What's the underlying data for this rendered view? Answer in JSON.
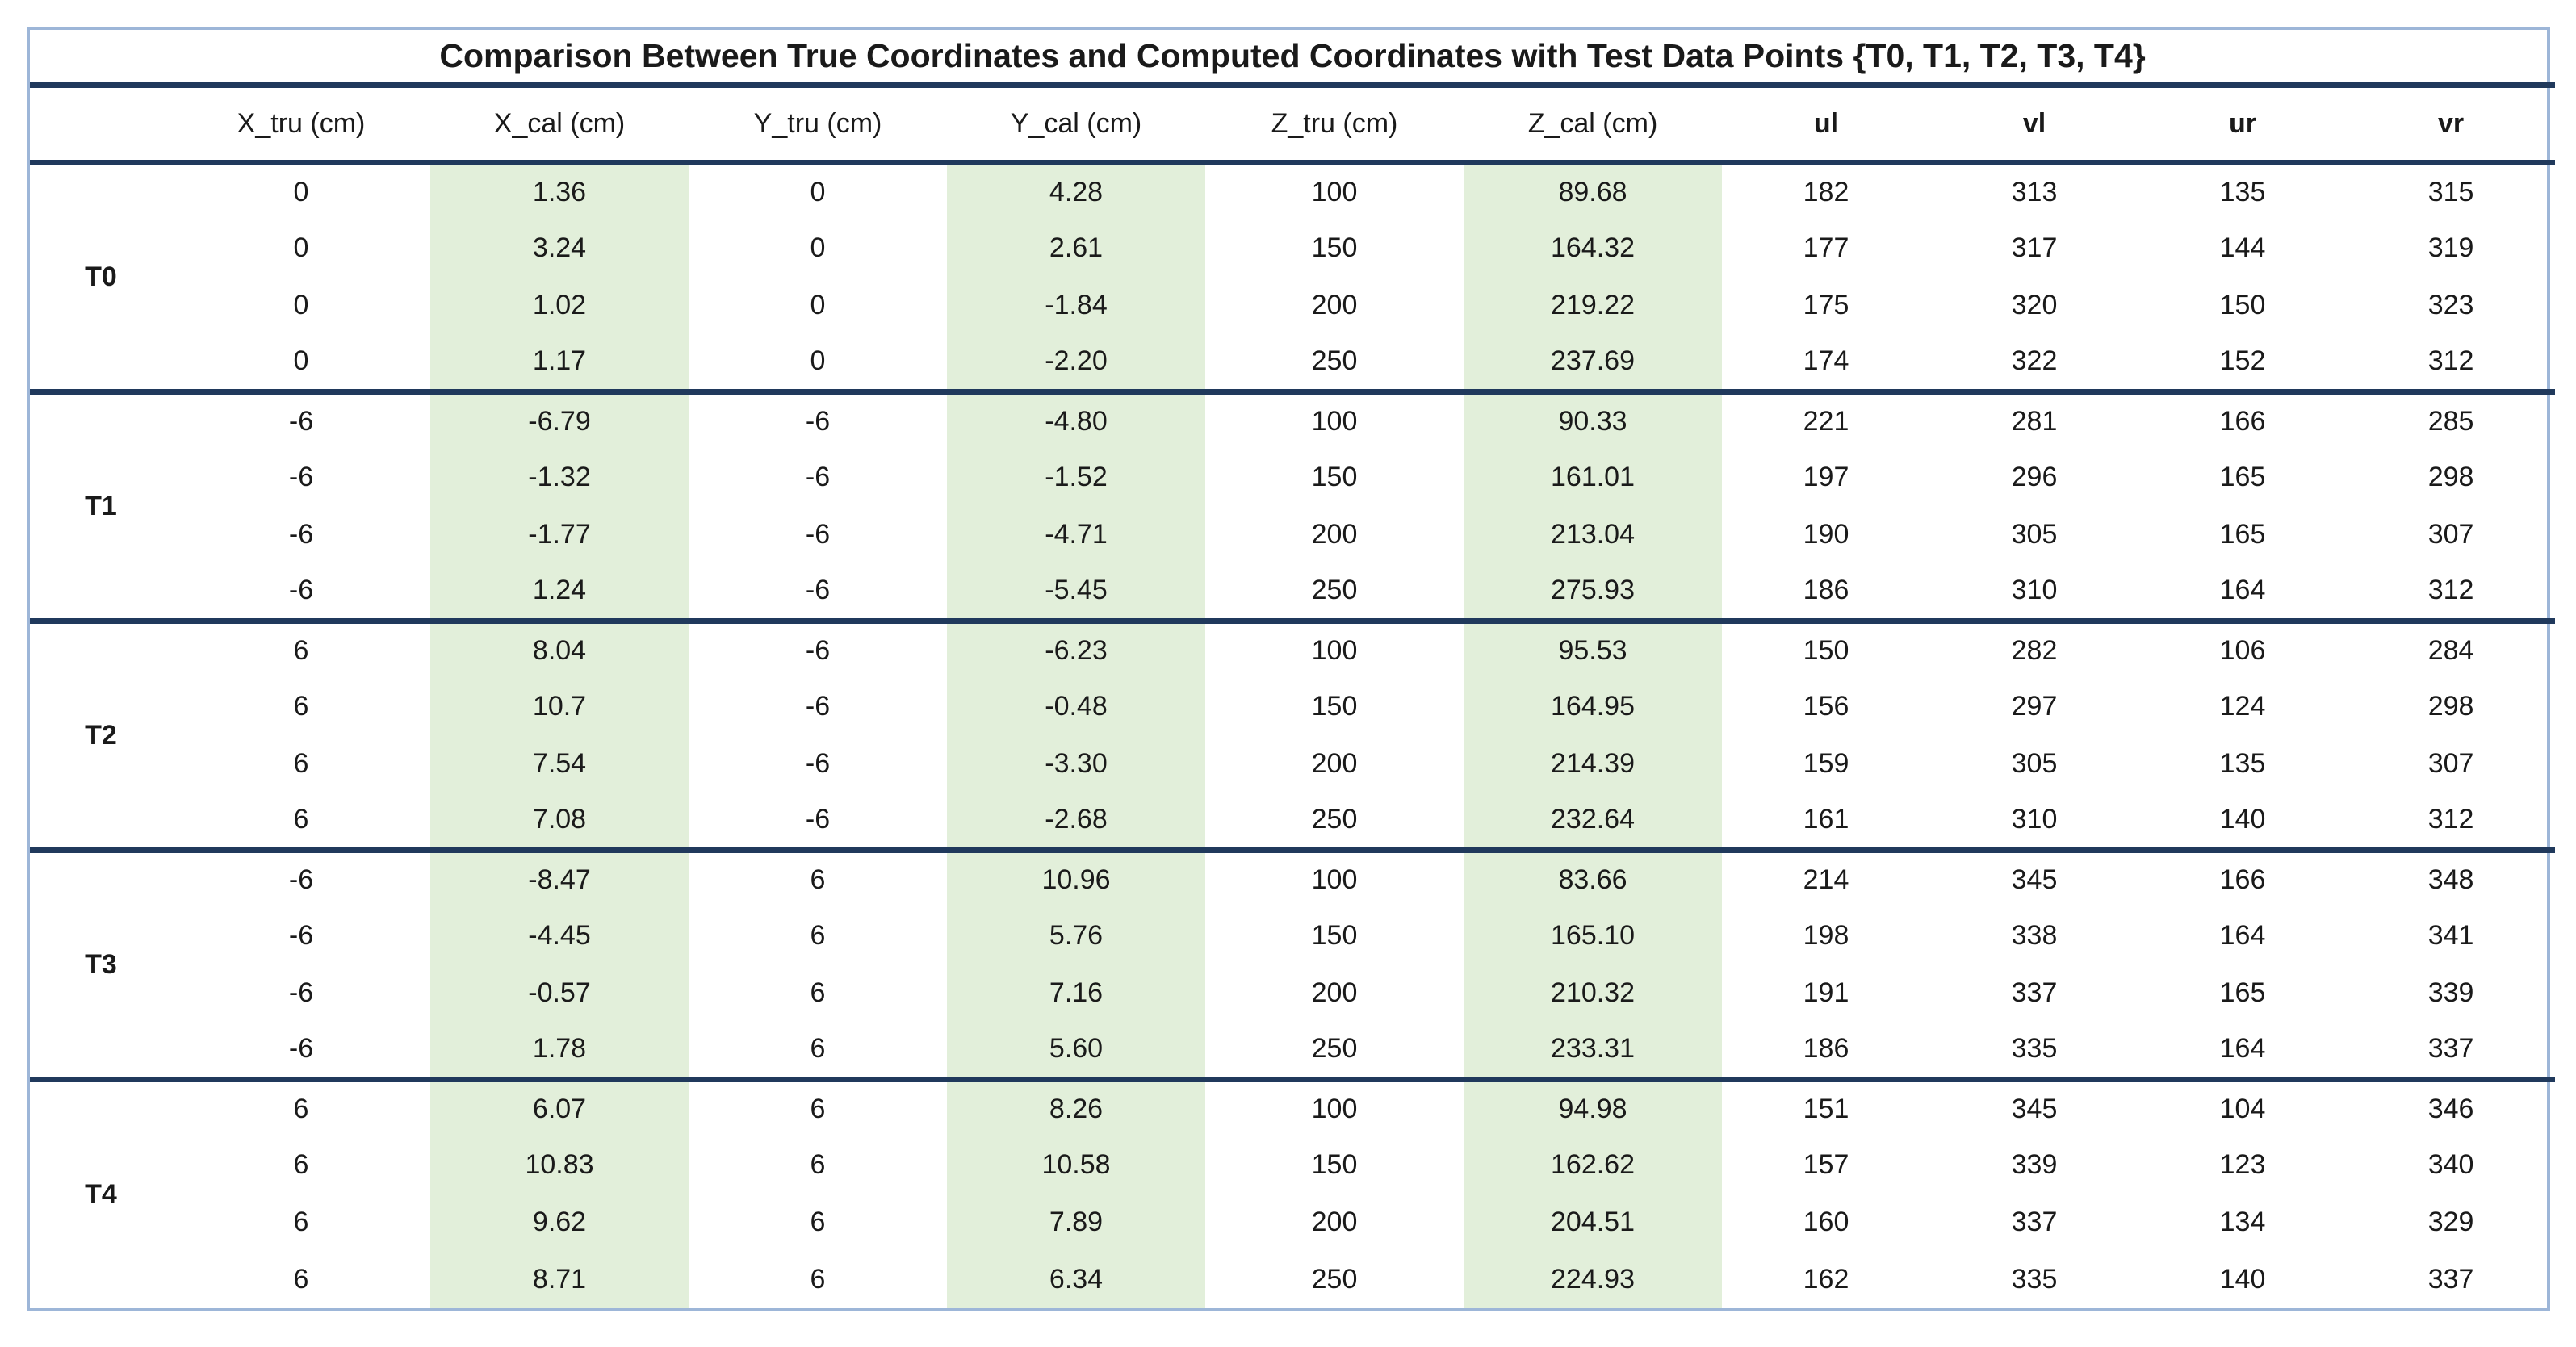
{
  "colors": {
    "highlight_green": "#e2efda",
    "separator_navy": "#20395c",
    "outer_border_blue": "#9db6d8"
  },
  "chart_data": {
    "type": "table",
    "title": "Comparison Between True Coordinates and Computed Coordinates with Test Data Points {T0, T1, T2, T3, T4}",
    "columns": [
      "",
      "X_tru (cm)",
      "X_cal (cm)",
      "Y_tru (cm)",
      "Y_cal (cm)",
      "Z_tru (cm)",
      "Z_cal (cm)",
      "ul",
      "vl",
      "ur",
      "vr"
    ],
    "bold_headers": [
      "ul",
      "vl",
      "ur",
      "vr"
    ],
    "highlighted_columns": [
      "X_cal (cm)",
      "Y_cal (cm)",
      "Z_cal (cm)"
    ],
    "groups": [
      {
        "label": "T0",
        "rows": [
          [
            "0",
            "1.36",
            "0",
            "4.28",
            "100",
            "89.68",
            "182",
            "313",
            "135",
            "315"
          ],
          [
            "0",
            "3.24",
            "0",
            "2.61",
            "150",
            "164.32",
            "177",
            "317",
            "144",
            "319"
          ],
          [
            "0",
            "1.02",
            "0",
            "-1.84",
            "200",
            "219.22",
            "175",
            "320",
            "150",
            "323"
          ],
          [
            "0",
            "1.17",
            "0",
            "-2.20",
            "250",
            "237.69",
            "174",
            "322",
            "152",
            "312"
          ]
        ]
      },
      {
        "label": "T1",
        "rows": [
          [
            "-6",
            "-6.79",
            "-6",
            "-4.80",
            "100",
            "90.33",
            "221",
            "281",
            "166",
            "285"
          ],
          [
            "-6",
            "-1.32",
            "-6",
            "-1.52",
            "150",
            "161.01",
            "197",
            "296",
            "165",
            "298"
          ],
          [
            "-6",
            "-1.77",
            "-6",
            "-4.71",
            "200",
            "213.04",
            "190",
            "305",
            "165",
            "307"
          ],
          [
            "-6",
            "1.24",
            "-6",
            "-5.45",
            "250",
            "275.93",
            "186",
            "310",
            "164",
            "312"
          ]
        ]
      },
      {
        "label": "T2",
        "rows": [
          [
            "6",
            "8.04",
            "-6",
            "-6.23",
            "100",
            "95.53",
            "150",
            "282",
            "106",
            "284"
          ],
          [
            "6",
            "10.7",
            "-6",
            "-0.48",
            "150",
            "164.95",
            "156",
            "297",
            "124",
            "298"
          ],
          [
            "6",
            "7.54",
            "-6",
            "-3.30",
            "200",
            "214.39",
            "159",
            "305",
            "135",
            "307"
          ],
          [
            "6",
            "7.08",
            "-6",
            "-2.68",
            "250",
            "232.64",
            "161",
            "310",
            "140",
            "312"
          ]
        ]
      },
      {
        "label": "T3",
        "rows": [
          [
            "-6",
            "-8.47",
            "6",
            "10.96",
            "100",
            "83.66",
            "214",
            "345",
            "166",
            "348"
          ],
          [
            "-6",
            "-4.45",
            "6",
            "5.76",
            "150",
            "165.10",
            "198",
            "338",
            "164",
            "341"
          ],
          [
            "-6",
            "-0.57",
            "6",
            "7.16",
            "200",
            "210.32",
            "191",
            "337",
            "165",
            "339"
          ],
          [
            "-6",
            "1.78",
            "6",
            "5.60",
            "250",
            "233.31",
            "186",
            "335",
            "164",
            "337"
          ]
        ]
      },
      {
        "label": "T4",
        "rows": [
          [
            "6",
            "6.07",
            "6",
            "8.26",
            "100",
            "94.98",
            "151",
            "345",
            "104",
            "346"
          ],
          [
            "6",
            "10.83",
            "6",
            "10.58",
            "150",
            "162.62",
            "157",
            "339",
            "123",
            "340"
          ],
          [
            "6",
            "9.62",
            "6",
            "7.89",
            "200",
            "204.51",
            "160",
            "337",
            "134",
            "329"
          ],
          [
            "6",
            "8.71",
            "6",
            "6.34",
            "250",
            "224.93",
            "162",
            "335",
            "140",
            "337"
          ]
        ]
      }
    ]
  }
}
